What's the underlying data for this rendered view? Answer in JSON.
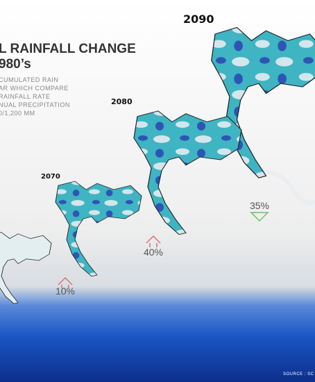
{
  "header": {
    "title_lines": [
      "L RAINFALL CHANGE",
      "980’s"
    ],
    "description": [
      "CUMULATED RAIN",
      "AR WHICH COMPARE",
      "RAINFALL RATE",
      "NUAL PRECIPITATION",
      "0/1,200 MM"
    ]
  },
  "maps": [
    {
      "year": "2090",
      "change": "35%"
    },
    {
      "year": "2080",
      "change": "40%"
    },
    {
      "year": "2070",
      "change": "10%"
    }
  ],
  "source": "SOURCE : SC"
}
